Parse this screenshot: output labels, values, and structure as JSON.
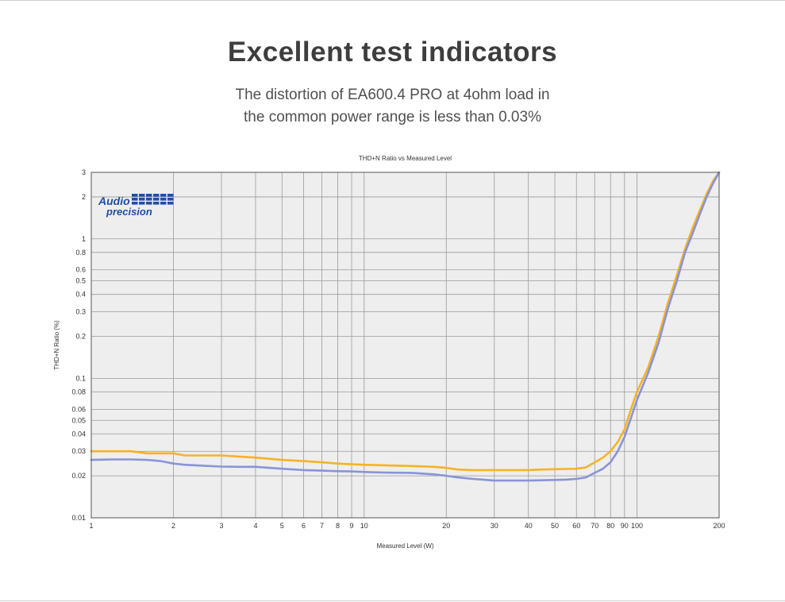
{
  "header": {
    "title": "Excellent test indicators",
    "subtitle_line1": "The distortion of EA600.4 PRO at 4ohm load in",
    "subtitle_line2": "the common power range is less than 0.03%"
  },
  "logo": {
    "line1": "Audio",
    "line2": "precision",
    "color": "#1f4fa3"
  },
  "chart_data": {
    "type": "line",
    "title": "THD+N Ratio vs Measured Level",
    "xlabel": "Measured Level (W)",
    "ylabel": "THD+N Ratio (%)",
    "xscale": "log",
    "yscale": "log",
    "xlim": [
      1,
      200
    ],
    "ylim": [
      0.01,
      3
    ],
    "grid": true,
    "background": "#eeeeee",
    "x_ticks": [
      1,
      2,
      3,
      4,
      5,
      6,
      7,
      8,
      9,
      10,
      20,
      30,
      40,
      50,
      60,
      70,
      80,
      90,
      100,
      200
    ],
    "x_tick_labels": [
      "1",
      "2",
      "3",
      "4",
      "5",
      "6",
      "7",
      "8",
      "9",
      "10",
      "20",
      "30",
      "40",
      "50",
      "60",
      "70",
      "80",
      "90",
      "100",
      "200"
    ],
    "y_ticks": [
      0.01,
      0.02,
      0.03,
      0.04,
      0.05,
      0.06,
      0.08,
      0.1,
      0.2,
      0.3,
      0.4,
      0.5,
      0.6,
      0.8,
      1,
      2,
      3
    ],
    "y_tick_labels": [
      "0.01",
      "0.02",
      "0.03",
      "0.04",
      "0.05",
      "0.06",
      "0.08",
      "0.1",
      "0.2",
      "0.3",
      "0.4",
      "0.5",
      "0.6",
      "0.8",
      "1",
      "2",
      "3"
    ],
    "series": [
      {
        "color": "#f5b324",
        "x": [
          1,
          1.2,
          1.4,
          1.6,
          1.8,
          2,
          2.2,
          2.5,
          3,
          3.5,
          4,
          5,
          6,
          7,
          8,
          9,
          10,
          12,
          15,
          18,
          20,
          22,
          25,
          30,
          35,
          40,
          45,
          50,
          55,
          60,
          65,
          70,
          75,
          80,
          85,
          90,
          95,
          100,
          110,
          120,
          130,
          140,
          150,
          160,
          170,
          180,
          190,
          200
        ],
        "y": [
          0.03,
          0.03,
          0.03,
          0.029,
          0.029,
          0.029,
          0.028,
          0.028,
          0.028,
          0.0275,
          0.027,
          0.026,
          0.0255,
          0.025,
          0.0245,
          0.0242,
          0.024,
          0.0238,
          0.0235,
          0.0232,
          0.0228,
          0.0222,
          0.022,
          0.022,
          0.022,
          0.022,
          0.0222,
          0.0223,
          0.0224,
          0.0225,
          0.023,
          0.025,
          0.027,
          0.03,
          0.035,
          0.043,
          0.06,
          0.08,
          0.12,
          0.2,
          0.35,
          0.55,
          0.85,
          1.2,
          1.6,
          2.1,
          2.6,
          3
        ]
      },
      {
        "color": "#8a93d8",
        "x": [
          1,
          1.2,
          1.4,
          1.6,
          1.8,
          2,
          2.2,
          2.5,
          3,
          3.5,
          4,
          5,
          6,
          7,
          8,
          9,
          10,
          12,
          15,
          18,
          20,
          22,
          25,
          30,
          35,
          40,
          45,
          50,
          55,
          60,
          65,
          70,
          75,
          80,
          85,
          90,
          95,
          100,
          110,
          120,
          130,
          140,
          150,
          160,
          170,
          180,
          190,
          200
        ],
        "y": [
          0.026,
          0.0262,
          0.0262,
          0.026,
          0.0255,
          0.0245,
          0.024,
          0.0237,
          0.0233,
          0.0232,
          0.0232,
          0.0225,
          0.022,
          0.0218,
          0.0216,
          0.0215,
          0.0213,
          0.0211,
          0.021,
          0.0205,
          0.02,
          0.0195,
          0.019,
          0.0185,
          0.0185,
          0.0185,
          0.0186,
          0.0187,
          0.0188,
          0.019,
          0.0195,
          0.021,
          0.0225,
          0.025,
          0.03,
          0.038,
          0.052,
          0.07,
          0.11,
          0.18,
          0.32,
          0.5,
          0.8,
          1.1,
          1.5,
          2.0,
          2.5,
          3
        ]
      }
    ]
  }
}
